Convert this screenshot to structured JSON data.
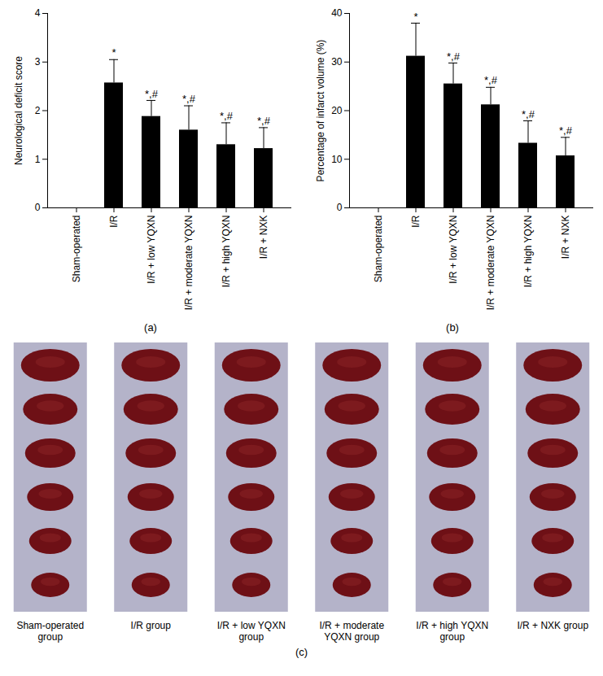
{
  "chart_data": [
    {
      "type": "bar",
      "caption": "(a)",
      "categories": [
        "Sham-operated",
        "I/R",
        "I/R + low YQXN",
        "I/R + moderate YQXN",
        "I/R + high YQXN",
        "I/R + NXK"
      ],
      "values": [
        0,
        2.57,
        1.88,
        1.6,
        1.3,
        1.22
      ],
      "errors": [
        0,
        0.48,
        0.33,
        0.5,
        0.45,
        0.43
      ],
      "significance": [
        null,
        "*",
        "*,#",
        "*,#",
        "*,#",
        "*,#"
      ],
      "color": "#000000",
      "y_label": "Neurological deficit score",
      "ylim": [
        0,
        4
      ],
      "yticks": [
        0,
        1,
        2,
        3,
        4
      ]
    },
    {
      "type": "bar",
      "caption": "(b)",
      "categories": [
        "Sham-operated",
        "I/R",
        "I/R + low YQXN",
        "I/R + moderate YQXN",
        "I/R + high YQXN",
        "I/R + NXK"
      ],
      "values": [
        0,
        31.2,
        25.5,
        21.2,
        13.3,
        10.7
      ],
      "errors": [
        0,
        6.8,
        4.3,
        3.6,
        4.6,
        3.8
      ],
      "significance": [
        null,
        "*",
        "*,#",
        "*,#",
        "*,#",
        "*,#"
      ],
      "color": "#000000",
      "y_label": "Percentage of infarct volume (%)",
      "ylim": [
        0,
        40
      ],
      "yticks": [
        0,
        10,
        20,
        30,
        40
      ]
    }
  ],
  "panel_c": {
    "caption": "(c)",
    "labels": [
      "Sham-operated group",
      "I/R group",
      "I/R + low YQXN group",
      "I/R + moderate YQXN group",
      "I/R + high YQXN group",
      "I/R + NXK group"
    ]
  }
}
